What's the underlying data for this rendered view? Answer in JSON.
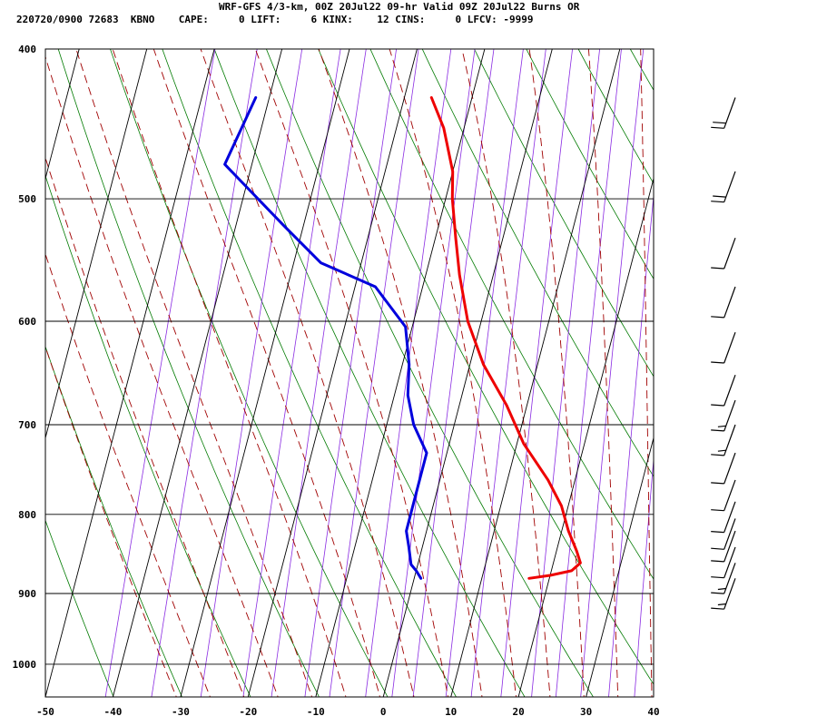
{
  "header": {
    "title": "WRF-GFS 4/3-km, 00Z 20Jul22 09-hr Valid 09Z 20Jul22 Burns OR",
    "info": "220720/0900 72683  KBNO    CAPE:     0 LIFT:     6 KINX:    12 CINS:     0 LFCV: -9999"
  },
  "colors": {
    "temperature": "#ee0000",
    "dewpoint": "#0000dd",
    "isotherm": "#000000",
    "dry_adiabat": "#007a00",
    "moist_adiabat": "#a00000",
    "mixing_ratio": "#8a2be2",
    "wind_barb": "#000000"
  },
  "chart_data": {
    "type": "skew-t",
    "x_axis": {
      "min": -50,
      "max": 40,
      "ticks": [
        -50,
        -40,
        -30,
        -20,
        -10,
        0,
        10,
        20,
        30,
        40
      ],
      "labels": [
        "-50",
        "-40",
        "-30",
        "-20",
        "-10",
        "0",
        "10",
        "20",
        "30",
        "40"
      ]
    },
    "y_axis": {
      "scale": "log",
      "pressure_top": 400,
      "pressure_bottom": 1050,
      "ticks": [
        400,
        500,
        600,
        700,
        800,
        900,
        1000
      ],
      "labels": [
        "400",
        "500",
        "600",
        "700",
        "800",
        "900",
        "1000"
      ]
    },
    "grid": true,
    "series": [
      {
        "key": "temperature",
        "points": [
          [
            430,
            -16
          ],
          [
            450,
            -13
          ],
          [
            480,
            -10
          ],
          [
            500,
            -9
          ],
          [
            530,
            -7
          ],
          [
            560,
            -5
          ],
          [
            600,
            -2
          ],
          [
            640,
            2
          ],
          [
            680,
            7
          ],
          [
            720,
            11
          ],
          [
            760,
            16
          ],
          [
            790,
            19
          ],
          [
            820,
            21
          ],
          [
            845,
            23
          ],
          [
            860,
            24
          ],
          [
            870,
            23
          ],
          [
            876,
            20
          ],
          [
            880,
            17
          ]
        ]
      },
      {
        "key": "dewpoint",
        "points": [
          [
            430,
            -42
          ],
          [
            475,
            -44
          ],
          [
            520,
            -33
          ],
          [
            550,
            -26
          ],
          [
            570,
            -17
          ],
          [
            605,
            -11
          ],
          [
            640,
            -9
          ],
          [
            670,
            -8
          ],
          [
            700,
            -6
          ],
          [
            730,
            -3
          ],
          [
            780,
            -3
          ],
          [
            820,
            -3
          ],
          [
            840,
            -2
          ],
          [
            862,
            -1
          ],
          [
            870,
            0
          ],
          [
            880,
            1
          ]
        ]
      }
    ],
    "wind_barbs": [
      {
        "pressure": 430,
        "kt": 20
      },
      {
        "pressure": 480,
        "kt": 20
      },
      {
        "pressure": 530,
        "kt": 10
      },
      {
        "pressure": 570,
        "kt": 10
      },
      {
        "pressure": 610,
        "kt": 10
      },
      {
        "pressure": 650,
        "kt": 10
      },
      {
        "pressure": 675,
        "kt": 15
      },
      {
        "pressure": 700,
        "kt": 15
      },
      {
        "pressure": 730,
        "kt": 10
      },
      {
        "pressure": 760,
        "kt": 10
      },
      {
        "pressure": 785,
        "kt": 10
      },
      {
        "pressure": 805,
        "kt": 10
      },
      {
        "pressure": 820,
        "kt": 10
      },
      {
        "pressure": 840,
        "kt": 10
      },
      {
        "pressure": 860,
        "kt": 15
      },
      {
        "pressure": 880,
        "kt": 15
      }
    ]
  }
}
